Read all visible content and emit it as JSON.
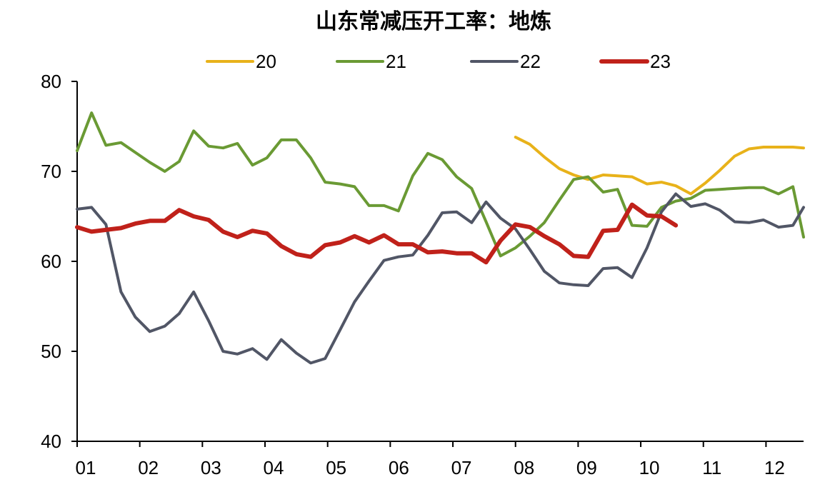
{
  "chart_data": {
    "type": "line",
    "title": "山东常减压开工率：地炼",
    "xlabel": "",
    "ylabel": "",
    "ylim": [
      40,
      80
    ],
    "xlim": [
      1,
      12.6
    ],
    "yticks": [
      40,
      50,
      60,
      70,
      80
    ],
    "xticks": [
      {
        "value": 1,
        "label": "01"
      },
      {
        "value": 2,
        "label": "02"
      },
      {
        "value": 3,
        "label": "03"
      },
      {
        "value": 4,
        "label": "04"
      },
      {
        "value": 5,
        "label": "05"
      },
      {
        "value": 6,
        "label": "06"
      },
      {
        "value": 7,
        "label": "07"
      },
      {
        "value": 8,
        "label": "08"
      },
      {
        "value": 9,
        "label": "09"
      },
      {
        "value": 10,
        "label": "10"
      },
      {
        "value": 11,
        "label": "11"
      },
      {
        "value": 12,
        "label": "12"
      }
    ],
    "legend_position": "top",
    "grid": false,
    "series": [
      {
        "name": "20",
        "color": "#E8B21A",
        "x": [
          8.0,
          8.23,
          8.46,
          8.7,
          8.93,
          9.16,
          9.4,
          9.63,
          9.86,
          10.1,
          10.33,
          10.56,
          10.8,
          11.03,
          11.26,
          11.5,
          11.73,
          11.96,
          12.2,
          12.43,
          12.6
        ],
        "values": [
          73.8,
          73.0,
          71.6,
          70.3,
          69.6,
          69.1,
          69.6,
          69.5,
          69.4,
          68.6,
          68.8,
          68.4,
          67.5,
          68.7,
          70.1,
          71.7,
          72.5,
          72.7,
          72.7,
          72.7,
          72.6
        ]
      },
      {
        "name": "21",
        "color": "#6A9A34",
        "x": [
          1.0,
          1.23,
          1.46,
          1.7,
          1.93,
          2.16,
          2.4,
          2.63,
          2.86,
          3.1,
          3.33,
          3.56,
          3.8,
          4.03,
          4.26,
          4.5,
          4.73,
          4.96,
          5.2,
          5.43,
          5.66,
          5.9,
          6.13,
          6.36,
          6.6,
          6.83,
          7.06,
          7.3,
          7.53,
          7.76,
          8.0,
          8.23,
          8.46,
          8.7,
          8.93,
          9.16,
          9.4,
          9.63,
          9.86,
          10.1,
          10.33,
          10.56,
          10.8,
          11.03,
          11.26,
          11.5,
          11.73,
          11.96,
          12.2,
          12.43,
          12.6
        ],
        "values": [
          72.3,
          76.5,
          72.9,
          73.2,
          72.1,
          71.0,
          70.0,
          71.1,
          74.5,
          72.8,
          72.6,
          73.1,
          70.7,
          71.5,
          73.5,
          73.5,
          71.5,
          68.8,
          68.6,
          68.3,
          66.2,
          66.2,
          65.6,
          69.5,
          72.0,
          71.3,
          69.4,
          68.1,
          64.4,
          60.6,
          61.5,
          62.8,
          64.3,
          66.8,
          69.1,
          69.4,
          67.7,
          68.0,
          64.0,
          63.9,
          66.0,
          66.7,
          67.0,
          67.9,
          68.0,
          68.1,
          68.2,
          68.2,
          67.5,
          68.3,
          62.7
        ]
      },
      {
        "name": "22",
        "color": "#515666",
        "x": [
          1.0,
          1.23,
          1.46,
          1.7,
          1.93,
          2.16,
          2.4,
          2.63,
          2.86,
          3.1,
          3.33,
          3.56,
          3.8,
          4.03,
          4.26,
          4.5,
          4.73,
          4.96,
          5.2,
          5.43,
          5.66,
          5.9,
          6.13,
          6.36,
          6.6,
          6.83,
          7.06,
          7.3,
          7.53,
          7.76,
          8.0,
          8.23,
          8.46,
          8.7,
          8.93,
          9.16,
          9.4,
          9.63,
          9.86,
          10.1,
          10.33,
          10.56,
          10.8,
          11.03,
          11.26,
          11.5,
          11.73,
          11.96,
          12.2,
          12.43,
          12.6
        ],
        "values": [
          65.8,
          66.0,
          64.1,
          56.6,
          53.8,
          52.2,
          52.8,
          54.2,
          56.6,
          53.4,
          50.0,
          49.7,
          50.3,
          49.1,
          51.3,
          49.8,
          48.7,
          49.2,
          52.4,
          55.5,
          57.8,
          60.1,
          60.5,
          60.7,
          62.9,
          65.4,
          65.5,
          64.3,
          66.6,
          64.8,
          63.6,
          61.3,
          58.9,
          57.6,
          57.4,
          57.3,
          59.2,
          59.3,
          58.2,
          61.5,
          65.5,
          67.5,
          66.1,
          66.4,
          65.7,
          64.4,
          64.3,
          64.6,
          63.8,
          64.0,
          66.0
        ]
      },
      {
        "name": "23",
        "color": "#C0211A",
        "x": [
          1.0,
          1.23,
          1.46,
          1.7,
          1.93,
          2.16,
          2.4,
          2.63,
          2.86,
          3.1,
          3.33,
          3.56,
          3.8,
          4.03,
          4.26,
          4.5,
          4.73,
          4.96,
          5.2,
          5.43,
          5.66,
          5.9,
          6.13,
          6.36,
          6.6,
          6.83,
          7.06,
          7.3,
          7.53,
          7.76,
          8.0,
          8.23,
          8.46,
          8.7,
          8.93,
          9.16,
          9.4,
          9.63,
          9.86,
          10.1,
          10.33,
          10.56
        ],
        "values": [
          63.8,
          63.3,
          63.5,
          63.7,
          64.2,
          64.5,
          64.5,
          65.7,
          65.0,
          64.6,
          63.3,
          62.7,
          63.4,
          63.1,
          61.7,
          60.8,
          60.5,
          61.8,
          62.1,
          62.8,
          62.1,
          62.9,
          61.9,
          61.9,
          61.0,
          61.1,
          60.9,
          60.9,
          59.9,
          62.3,
          64.1,
          63.8,
          62.8,
          61.9,
          60.6,
          60.5,
          63.4,
          63.5,
          66.3,
          65.1,
          65.0,
          64.0
        ]
      }
    ]
  }
}
